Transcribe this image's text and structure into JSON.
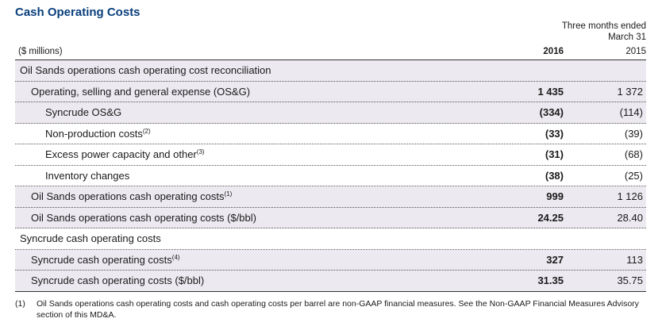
{
  "title": "Cash Operating Costs",
  "header": {
    "period_line1": "Three months ended",
    "period_line2": "March 31",
    "units": "($ millions)",
    "col1": "2016",
    "col2": "2015"
  },
  "rows": [
    {
      "label": "Oil Sands operations cash operating cost reconciliation",
      "sup": "",
      "v1": "",
      "v2": ""
    },
    {
      "label": "Operating, selling and general expense (OS&G)",
      "sup": "",
      "v1": "1 435",
      "v2": "1 372"
    },
    {
      "label": "Syncrude OS&G",
      "sup": "",
      "v1": "(334)",
      "v2": "(114)"
    },
    {
      "label": "Non-production costs",
      "sup": "(2)",
      "v1": "(33)",
      "v2": "(39)"
    },
    {
      "label": "Excess power capacity and other",
      "sup": "(3)",
      "v1": "(31)",
      "v2": "(68)"
    },
    {
      "label": "Inventory changes",
      "sup": "",
      "v1": "(38)",
      "v2": "(25)"
    },
    {
      "label": "Oil Sands operations cash operating costs",
      "sup": "(1)",
      "v1": "999",
      "v2": "1 126"
    },
    {
      "label": "Oil Sands operations cash operating costs ($/bbl)",
      "sup": "",
      "v1": "24.25",
      "v2": "28.40"
    },
    {
      "label": "Syncrude cash operating costs",
      "sup": "",
      "v1": "",
      "v2": ""
    },
    {
      "label": "Syncrude cash operating costs",
      "sup": "(4)",
      "v1": "327",
      "v2": "113"
    },
    {
      "label": "Syncrude cash operating costs ($/bbl)",
      "sup": "",
      "v1": "31.35",
      "v2": "35.75"
    }
  ],
  "footnote": {
    "num": "(1)",
    "text": "Oil Sands operations cash operating costs and cash operating costs per barrel are non-GAAP financial measures. See the Non-GAAP Financial Measures Advisory section of this MD&A."
  }
}
